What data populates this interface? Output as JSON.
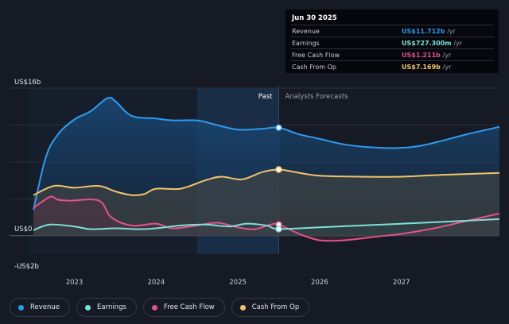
{
  "tooltip": {
    "date": "Jun 30 2025",
    "rows": [
      {
        "label": "Revenue",
        "value": "US$11.712b",
        "unit": "/yr",
        "color": "#2f9bf0"
      },
      {
        "label": "Earnings",
        "value": "US$727.300m",
        "unit": "/yr",
        "color": "#7fe0d6"
      },
      {
        "label": "Free Cash Flow",
        "value": "US$1.211b",
        "unit": "/yr",
        "color": "#e2538a"
      },
      {
        "label": "Cash From Op",
        "value": "US$7.169b",
        "unit": "/yr",
        "color": "#f1c46a"
      }
    ]
  },
  "legend": [
    {
      "label": "Revenue",
      "color": "#2f9bf0"
    },
    {
      "label": "Earnings",
      "color": "#7fe0d6"
    },
    {
      "label": "Free Cash Flow",
      "color": "#e2538a"
    },
    {
      "label": "Cash From Op",
      "color": "#f1c46a"
    }
  ],
  "chart_data": {
    "type": "area",
    "title": "",
    "y_unit": "US$ billions",
    "ylim": [
      -2,
      16
    ],
    "y_tick_labels": [
      {
        "value": 16,
        "label": "US$16b"
      },
      {
        "value": 0,
        "label": "US$0"
      },
      {
        "value": -2,
        "label": "-US$2b"
      }
    ],
    "x_tick_labels": [
      {
        "value": 2023,
        "label": "2023"
      },
      {
        "value": 2024,
        "label": "2024"
      },
      {
        "value": 2025,
        "label": "2025"
      },
      {
        "value": 2026,
        "label": "2026"
      },
      {
        "value": 2027,
        "label": "2027"
      }
    ],
    "x_range": [
      2022.45,
      2028.2
    ],
    "past_label": "Past",
    "forecast_label": "Analysts Forecasts",
    "past_end": 2025.5,
    "highlight_start": 2024.5,
    "series": [
      {
        "name": "Revenue",
        "color": "#2f9bf0",
        "points": [
          [
            2022.5,
            2.8
          ],
          [
            2022.65,
            8.5
          ],
          [
            2022.8,
            11.0
          ],
          [
            2023.0,
            12.6
          ],
          [
            2023.2,
            13.5
          ],
          [
            2023.4,
            14.9
          ],
          [
            2023.5,
            14.6
          ],
          [
            2023.7,
            13.0
          ],
          [
            2024.0,
            12.7
          ],
          [
            2024.2,
            12.5
          ],
          [
            2024.5,
            12.5
          ],
          [
            2024.7,
            12.1
          ],
          [
            2025.0,
            11.5
          ],
          [
            2025.3,
            11.6
          ],
          [
            2025.5,
            11.712
          ],
          [
            2025.75,
            11.0
          ],
          [
            2026.0,
            10.5
          ],
          [
            2026.3,
            9.9
          ],
          [
            2026.6,
            9.6
          ],
          [
            2026.9,
            9.5
          ],
          [
            2027.2,
            9.7
          ],
          [
            2027.5,
            10.3
          ],
          [
            2027.8,
            11.0
          ],
          [
            2028.2,
            11.8
          ]
        ]
      },
      {
        "name": "Cash From Op",
        "color": "#f1c46a",
        "points": [
          [
            2022.5,
            4.4
          ],
          [
            2022.75,
            5.4
          ],
          [
            2023.0,
            5.2
          ],
          [
            2023.3,
            5.4
          ],
          [
            2023.5,
            4.8
          ],
          [
            2023.7,
            4.4
          ],
          [
            2023.85,
            4.5
          ],
          [
            2024.0,
            5.1
          ],
          [
            2024.3,
            5.1
          ],
          [
            2024.6,
            6.0
          ],
          [
            2024.8,
            6.4
          ],
          [
            2025.05,
            6.1
          ],
          [
            2025.3,
            6.9
          ],
          [
            2025.5,
            7.169
          ],
          [
            2025.7,
            6.9
          ],
          [
            2026.0,
            6.5
          ],
          [
            2026.5,
            6.4
          ],
          [
            2027.0,
            6.4
          ],
          [
            2027.5,
            6.6
          ],
          [
            2028.2,
            6.8
          ]
        ]
      },
      {
        "name": "Free Cash Flow",
        "color": "#e2538a",
        "points": [
          [
            2022.5,
            3.0
          ],
          [
            2022.7,
            4.2
          ],
          [
            2022.8,
            3.9
          ],
          [
            2022.95,
            3.8
          ],
          [
            2023.3,
            3.8
          ],
          [
            2023.45,
            2.0
          ],
          [
            2023.7,
            1.1
          ],
          [
            2024.0,
            1.3
          ],
          [
            2024.2,
            0.8
          ],
          [
            2024.5,
            1.1
          ],
          [
            2024.75,
            1.4
          ],
          [
            2025.0,
            0.9
          ],
          [
            2025.2,
            0.7
          ],
          [
            2025.4,
            1.2
          ],
          [
            2025.5,
            1.211
          ],
          [
            2025.75,
            0.2
          ],
          [
            2026.0,
            -0.5
          ],
          [
            2026.3,
            -0.5
          ],
          [
            2026.7,
            -0.1
          ],
          [
            2027.0,
            0.2
          ],
          [
            2027.4,
            0.8
          ],
          [
            2027.8,
            1.6
          ],
          [
            2028.2,
            2.4
          ]
        ]
      },
      {
        "name": "Earnings",
        "color": "#7fe0d6",
        "points": [
          [
            2022.5,
            0.6
          ],
          [
            2022.7,
            1.2
          ],
          [
            2023.0,
            1.0
          ],
          [
            2023.2,
            0.7
          ],
          [
            2023.5,
            0.8
          ],
          [
            2023.8,
            0.7
          ],
          [
            2024.0,
            0.8
          ],
          [
            2024.3,
            1.1
          ],
          [
            2024.6,
            1.2
          ],
          [
            2024.9,
            1.0
          ],
          [
            2025.1,
            1.3
          ],
          [
            2025.35,
            1.1
          ],
          [
            2025.5,
            0.7273
          ],
          [
            2026.0,
            0.9
          ],
          [
            2026.5,
            1.1
          ],
          [
            2027.0,
            1.3
          ],
          [
            2027.5,
            1.5
          ],
          [
            2028.2,
            1.8
          ]
        ]
      }
    ]
  }
}
